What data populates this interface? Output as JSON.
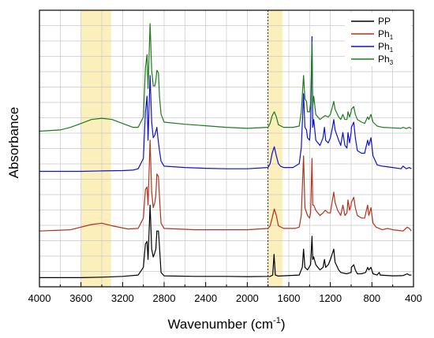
{
  "chart_data": {
    "type": "line",
    "xlabel": "Wavenumber (cm",
    "xlabel_sup": "-1",
    "xlabel_close": ")",
    "ylabel": "Absorbance",
    "x_reversed": true,
    "xlim": [
      4000,
      400
    ],
    "ylim": [
      0,
      1
    ],
    "grid": true,
    "legend_position": "top-right",
    "x_ticks": [
      4000,
      3600,
      3200,
      2800,
      2400,
      2000,
      1600,
      1200,
      800,
      400
    ],
    "highlight_bands": [
      {
        "from": 3600,
        "to": 3310,
        "color": "#fbefbb"
      },
      {
        "from": 1800,
        "to": 1660,
        "color": "#fbefbb"
      }
    ],
    "dashed_marker_x": 1800,
    "series": [
      {
        "name": "PP",
        "name_sub": "",
        "color": "#000000",
        "points": [
          [
            4000,
            0.02
          ],
          [
            3600,
            0.02
          ],
          [
            3400,
            0.022
          ],
          [
            3200,
            0.025
          ],
          [
            3050,
            0.03
          ],
          [
            3000,
            0.06
          ],
          [
            2980,
            0.15
          ],
          [
            2965,
            0.16
          ],
          [
            2955,
            0.09
          ],
          [
            2935,
            0.3
          ],
          [
            2920,
            0.13
          ],
          [
            2905,
            0.1
          ],
          [
            2895,
            0.11
          ],
          [
            2880,
            0.13
          ],
          [
            2870,
            0.2
          ],
          [
            2855,
            0.2
          ],
          [
            2845,
            0.14
          ],
          [
            2830,
            0.04
          ],
          [
            2800,
            0.027
          ],
          [
            2500,
            0.025
          ],
          [
            2200,
            0.025
          ],
          [
            2000,
            0.024
          ],
          [
            1780,
            0.025
          ],
          [
            1755,
            0.03
          ],
          [
            1742,
            0.11
          ],
          [
            1730,
            0.03
          ],
          [
            1700,
            0.026
          ],
          [
            1500,
            0.03
          ],
          [
            1470,
            0.06
          ],
          [
            1458,
            0.13
          ],
          [
            1445,
            0.06
          ],
          [
            1420,
            0.05
          ],
          [
            1390,
            0.07
          ],
          [
            1377,
            0.18
          ],
          [
            1370,
            0.09
          ],
          [
            1360,
            0.1
          ],
          [
            1340,
            0.07
          ],
          [
            1300,
            0.05
          ],
          [
            1270,
            0.06
          ],
          [
            1257,
            0.09
          ],
          [
            1245,
            0.06
          ],
          [
            1220,
            0.07
          ],
          [
            1200,
            0.09
          ],
          [
            1167,
            0.13
          ],
          [
            1155,
            0.08
          ],
          [
            1120,
            0.05
          ],
          [
            1100,
            0.04
          ],
          [
            1045,
            0.035
          ],
          [
            1000,
            0.04
          ],
          [
            998,
            0.06
          ],
          [
            975,
            0.07
          ],
          [
            960,
            0.05
          ],
          [
            940,
            0.035
          ],
          [
            900,
            0.035
          ],
          [
            860,
            0.04
          ],
          [
            841,
            0.06
          ],
          [
            830,
            0.05
          ],
          [
            809,
            0.06
          ],
          [
            790,
            0.035
          ],
          [
            750,
            0.03
          ],
          [
            730,
            0.04
          ],
          [
            720,
            0.03
          ],
          [
            600,
            0.027
          ],
          [
            500,
            0.028
          ],
          [
            460,
            0.035
          ],
          [
            440,
            0.03
          ],
          [
            420,
            0.03
          ]
        ]
      },
      {
        "name": "Ph",
        "name_sub": "1",
        "color": "#b2321b",
        "points": [
          [
            4000,
            0.2
          ],
          [
            3700,
            0.205
          ],
          [
            3500,
            0.225
          ],
          [
            3400,
            0.23
          ],
          [
            3300,
            0.22
          ],
          [
            3150,
            0.208
          ],
          [
            3050,
            0.21
          ],
          [
            3000,
            0.25
          ],
          [
            2980,
            0.36
          ],
          [
            2965,
            0.37
          ],
          [
            2955,
            0.3
          ],
          [
            2935,
            0.55
          ],
          [
            2920,
            0.35
          ],
          [
            2905,
            0.29
          ],
          [
            2890,
            0.31
          ],
          [
            2880,
            0.34
          ],
          [
            2870,
            0.42
          ],
          [
            2855,
            0.41
          ],
          [
            2845,
            0.33
          ],
          [
            2830,
            0.23
          ],
          [
            2800,
            0.21
          ],
          [
            2500,
            0.205
          ],
          [
            2200,
            0.205
          ],
          [
            2000,
            0.205
          ],
          [
            1800,
            0.21
          ],
          [
            1780,
            0.22
          ],
          [
            1760,
            0.25
          ],
          [
            1740,
            0.285
          ],
          [
            1720,
            0.26
          ],
          [
            1700,
            0.22
          ],
          [
            1650,
            0.21
          ],
          [
            1540,
            0.21
          ],
          [
            1500,
            0.215
          ],
          [
            1480,
            0.26
          ],
          [
            1458,
            0.49
          ],
          [
            1445,
            0.29
          ],
          [
            1420,
            0.26
          ],
          [
            1400,
            0.25
          ],
          [
            1390,
            0.27
          ],
          [
            1377,
            0.48
          ],
          [
            1370,
            0.3
          ],
          [
            1360,
            0.3
          ],
          [
            1340,
            0.28
          ],
          [
            1320,
            0.27
          ],
          [
            1300,
            0.26
          ],
          [
            1270,
            0.27
          ],
          [
            1250,
            0.28
          ],
          [
            1220,
            0.27
          ],
          [
            1200,
            0.27
          ],
          [
            1180,
            0.32
          ],
          [
            1167,
            0.35
          ],
          [
            1155,
            0.31
          ],
          [
            1130,
            0.28
          ],
          [
            1100,
            0.26
          ],
          [
            1080,
            0.3
          ],
          [
            1060,
            0.26
          ],
          [
            1040,
            0.27
          ],
          [
            1030,
            0.32
          ],
          [
            1015,
            0.28
          ],
          [
            1000,
            0.3
          ],
          [
            998,
            0.31
          ],
          [
            975,
            0.33
          ],
          [
            960,
            0.29
          ],
          [
            940,
            0.26
          ],
          [
            900,
            0.25
          ],
          [
            870,
            0.25
          ],
          [
            841,
            0.3
          ],
          [
            830,
            0.26
          ],
          [
            809,
            0.29
          ],
          [
            790,
            0.23
          ],
          [
            760,
            0.215
          ],
          [
            700,
            0.205
          ],
          [
            650,
            0.21
          ],
          [
            600,
            0.205
          ],
          [
            500,
            0.2
          ],
          [
            460,
            0.215
          ],
          [
            440,
            0.21
          ],
          [
            420,
            0.2
          ]
        ]
      },
      {
        "name": "Ph",
        "name_sub": "1",
        "color": "#1010d0",
        "points": [
          [
            4000,
            0.43
          ],
          [
            3600,
            0.43
          ],
          [
            3400,
            0.432
          ],
          [
            3200,
            0.433
          ],
          [
            3100,
            0.435
          ],
          [
            3050,
            0.44
          ],
          [
            3000,
            0.48
          ],
          [
            2980,
            0.66
          ],
          [
            2965,
            0.72
          ],
          [
            2955,
            0.55
          ],
          [
            2935,
            0.8
          ],
          [
            2920,
            0.62
          ],
          [
            2905,
            0.56
          ],
          [
            2890,
            0.57
          ],
          [
            2870,
            0.6
          ],
          [
            2860,
            0.56
          ],
          [
            2845,
            0.51
          ],
          [
            2830,
            0.47
          ],
          [
            2800,
            0.45
          ],
          [
            2600,
            0.445
          ],
          [
            2400,
            0.442
          ],
          [
            2200,
            0.44
          ],
          [
            2000,
            0.44
          ],
          [
            1800,
            0.445
          ],
          [
            1780,
            0.46
          ],
          [
            1760,
            0.5
          ],
          [
            1740,
            0.525
          ],
          [
            1720,
            0.49
          ],
          [
            1700,
            0.46
          ],
          [
            1680,
            0.45
          ],
          [
            1650,
            0.445
          ],
          [
            1560,
            0.445
          ],
          [
            1500,
            0.46
          ],
          [
            1480,
            0.52
          ],
          [
            1458,
            0.73
          ],
          [
            1445,
            0.6
          ],
          [
            1430,
            0.59
          ],
          [
            1420,
            0.56
          ],
          [
            1400,
            0.55
          ],
          [
            1390,
            0.6
          ],
          [
            1377,
            0.95
          ],
          [
            1370,
            0.6
          ],
          [
            1360,
            0.63
          ],
          [
            1340,
            0.55
          ],
          [
            1300,
            0.53
          ],
          [
            1270,
            0.56
          ],
          [
            1257,
            0.6
          ],
          [
            1245,
            0.55
          ],
          [
            1220,
            0.54
          ],
          [
            1200,
            0.56
          ],
          [
            1180,
            0.6
          ],
          [
            1167,
            0.63
          ],
          [
            1155,
            0.59
          ],
          [
            1120,
            0.55
          ],
          [
            1100,
            0.53
          ],
          [
            1080,
            0.58
          ],
          [
            1060,
            0.53
          ],
          [
            1040,
            0.52
          ],
          [
            1030,
            0.58
          ],
          [
            1015,
            0.54
          ],
          [
            1000,
            0.58
          ],
          [
            998,
            0.6
          ],
          [
            975,
            0.62
          ],
          [
            960,
            0.56
          ],
          [
            940,
            0.51
          ],
          [
            900,
            0.5
          ],
          [
            870,
            0.5
          ],
          [
            841,
            0.55
          ],
          [
            830,
            0.53
          ],
          [
            809,
            0.56
          ],
          [
            790,
            0.49
          ],
          [
            750,
            0.455
          ],
          [
            700,
            0.45
          ],
          [
            600,
            0.445
          ],
          [
            520,
            0.44
          ],
          [
            500,
            0.45
          ],
          [
            470,
            0.44
          ],
          [
            440,
            0.445
          ],
          [
            420,
            0.44
          ]
        ]
      },
      {
        "name": "Ph",
        "name_sub": "3",
        "color": "#1e7a1e",
        "points": [
          [
            4000,
            0.585
          ],
          [
            3800,
            0.59
          ],
          [
            3700,
            0.6
          ],
          [
            3600,
            0.615
          ],
          [
            3500,
            0.63
          ],
          [
            3400,
            0.635
          ],
          [
            3300,
            0.63
          ],
          [
            3200,
            0.615
          ],
          [
            3100,
            0.6
          ],
          [
            3050,
            0.6
          ],
          [
            3000,
            0.64
          ],
          [
            2980,
            0.83
          ],
          [
            2965,
            0.88
          ],
          [
            2955,
            0.75
          ],
          [
            2935,
            1.0
          ],
          [
            2920,
            0.82
          ],
          [
            2905,
            0.76
          ],
          [
            2890,
            0.76
          ],
          [
            2880,
            0.78
          ],
          [
            2870,
            0.82
          ],
          [
            2855,
            0.81
          ],
          [
            2845,
            0.72
          ],
          [
            2830,
            0.65
          ],
          [
            2800,
            0.62
          ],
          [
            2600,
            0.612
          ],
          [
            2400,
            0.606
          ],
          [
            2200,
            0.6
          ],
          [
            2000,
            0.596
          ],
          [
            1800,
            0.6
          ],
          [
            1780,
            0.615
          ],
          [
            1760,
            0.645
          ],
          [
            1740,
            0.66
          ],
          [
            1720,
            0.64
          ],
          [
            1700,
            0.61
          ],
          [
            1650,
            0.6
          ],
          [
            1560,
            0.6
          ],
          [
            1500,
            0.605
          ],
          [
            1480,
            0.66
          ],
          [
            1458,
            0.8
          ],
          [
            1445,
            0.71
          ],
          [
            1430,
            0.7
          ],
          [
            1420,
            0.66
          ],
          [
            1400,
            0.66
          ],
          [
            1390,
            0.69
          ],
          [
            1377,
            0.93
          ],
          [
            1370,
            0.68
          ],
          [
            1360,
            0.72
          ],
          [
            1340,
            0.65
          ],
          [
            1300,
            0.63
          ],
          [
            1270,
            0.64
          ],
          [
            1250,
            0.645
          ],
          [
            1220,
            0.64
          ],
          [
            1200,
            0.65
          ],
          [
            1180,
            0.68
          ],
          [
            1167,
            0.7
          ],
          [
            1155,
            0.67
          ],
          [
            1120,
            0.64
          ],
          [
            1100,
            0.63
          ],
          [
            1080,
            0.65
          ],
          [
            1060,
            0.63
          ],
          [
            1040,
            0.63
          ],
          [
            1030,
            0.66
          ],
          [
            1015,
            0.64
          ],
          [
            1000,
            0.66
          ],
          [
            998,
            0.67
          ],
          [
            975,
            0.68
          ],
          [
            960,
            0.65
          ],
          [
            940,
            0.63
          ],
          [
            900,
            0.62
          ],
          [
            870,
            0.615
          ],
          [
            841,
            0.64
          ],
          [
            830,
            0.63
          ],
          [
            809,
            0.65
          ],
          [
            790,
            0.62
          ],
          [
            750,
            0.605
          ],
          [
            700,
            0.6
          ],
          [
            600,
            0.598
          ],
          [
            520,
            0.596
          ],
          [
            500,
            0.6
          ],
          [
            470,
            0.595
          ],
          [
            440,
            0.6
          ],
          [
            420,
            0.595
          ]
        ]
      }
    ]
  }
}
